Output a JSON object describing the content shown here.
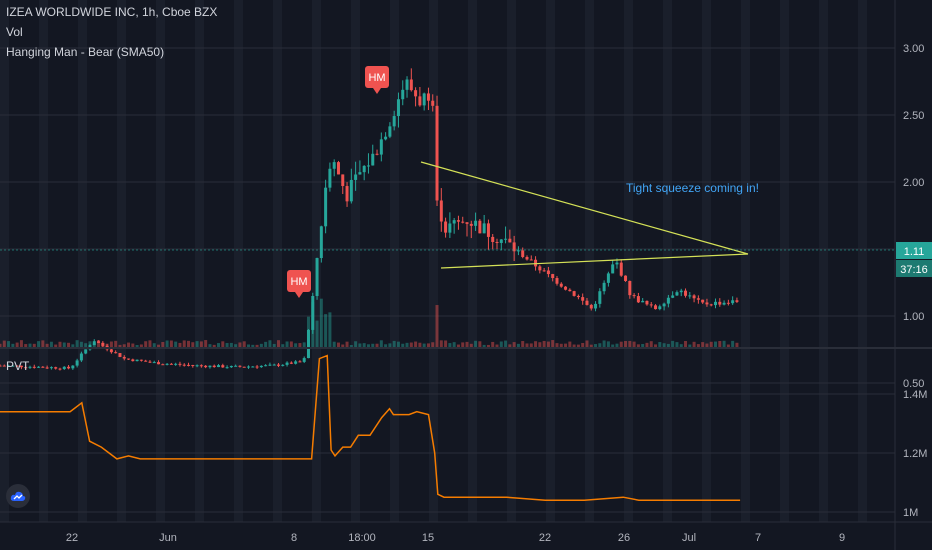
{
  "header": {
    "symbol_line": "IZEA WORLDWIDE INC, 1h, Cboe BZX",
    "vol_label": "Vol",
    "indicator_label": "Hanging Man - Bear (SMA50)",
    "pvt_label": "PVT"
  },
  "annotation": {
    "text": "Tight squeeze coming in!"
  },
  "price_badges": {
    "last_price": "1.11",
    "countdown": "37:16"
  },
  "markers": {
    "hm_label": "HM"
  },
  "colors": {
    "background": "#131722",
    "up_candle": "#26a69a",
    "down_candle": "#ef5350",
    "trendline": "#d4e157",
    "pvt_line": "#f57c00",
    "annotation_text": "#42a5f5",
    "axis_text": "#b2b5be",
    "hm_marker": "#ef5350"
  },
  "chart_data": [
    {
      "type": "candlestick",
      "title": "IZEA WORLDWIDE INC, 1h, Cboe BZX",
      "y_axis": {
        "ticks": [
          "3.00",
          "2.50",
          "2.00",
          "1.50",
          "1.00",
          "0.50"
        ],
        "range": [
          0.3,
          3.25
        ]
      },
      "x_axis": {
        "ticks": [
          "22",
          "Jun",
          "8",
          "18:00",
          "15",
          "22",
          "26",
          "Jul",
          "7",
          "9"
        ]
      },
      "series": [
        {
          "name": "price",
          "points": [
            {
              "x": 0.0,
              "y": 0.63
            },
            {
              "x": 0.5,
              "y": 0.62
            },
            {
              "x": 0.9,
              "y": 0.61
            },
            {
              "x": 1.2,
              "y": 0.82
            },
            {
              "x": 1.6,
              "y": 0.68
            },
            {
              "x": 2.0,
              "y": 0.65
            },
            {
              "x": 2.5,
              "y": 0.63
            },
            {
              "x": 3.0,
              "y": 0.62
            },
            {
              "x": 3.5,
              "y": 0.63
            },
            {
              "x": 3.9,
              "y": 0.66
            },
            {
              "x": 4.0,
              "y": 1.05
            },
            {
              "x": 4.1,
              "y": 1.6
            },
            {
              "x": 4.25,
              "y": 2.2
            },
            {
              "x": 4.45,
              "y": 1.9
            },
            {
              "x": 4.6,
              "y": 2.05
            },
            {
              "x": 4.8,
              "y": 2.2
            },
            {
              "x": 5.0,
              "y": 2.45
            },
            {
              "x": 5.2,
              "y": 2.75
            },
            {
              "x": 5.4,
              "y": 2.6
            },
            {
              "x": 5.55,
              "y": 2.7
            },
            {
              "x": 5.6,
              "y": 1.95
            },
            {
              "x": 5.7,
              "y": 1.65
            },
            {
              "x": 6.0,
              "y": 1.72
            },
            {
              "x": 6.5,
              "y": 1.55
            },
            {
              "x": 7.0,
              "y": 1.32
            },
            {
              "x": 7.4,
              "y": 1.15
            },
            {
              "x": 7.6,
              "y": 1.05
            },
            {
              "x": 7.9,
              "y": 1.42
            },
            {
              "x": 8.1,
              "y": 1.15
            },
            {
              "x": 8.4,
              "y": 1.05
            },
            {
              "x": 8.7,
              "y": 1.2
            },
            {
              "x": 9.0,
              "y": 1.09
            },
            {
              "x": 9.5,
              "y": 1.11
            }
          ]
        }
      ],
      "annotations": [
        "Tight squeeze coming in!"
      ],
      "markers": [
        "HM",
        "HM"
      ],
      "last_price": 1.11
    },
    {
      "type": "line",
      "title": "PVT",
      "y_axis": {
        "ticks": [
          "1.4M",
          "1.2M",
          "1M"
        ],
        "range": [
          0.99,
          1.55
        ]
      },
      "series": [
        {
          "name": "PVT",
          "x": [
            0.0,
            0.9,
            1.05,
            1.15,
            1.3,
            1.5,
            1.65,
            1.8,
            2.5,
            3.0,
            3.5,
            4.0,
            4.1,
            4.2,
            4.25,
            4.3,
            4.4,
            4.5,
            4.6,
            4.75,
            4.9,
            5.0,
            5.05,
            5.25,
            5.35,
            5.5,
            5.58,
            5.62,
            5.7,
            6.5,
            7.0,
            7.5,
            8.0,
            8.2,
            8.5,
            9.0,
            9.5
          ],
          "values": [
            1.34,
            1.34,
            1.37,
            1.24,
            1.22,
            1.18,
            1.19,
            1.18,
            1.18,
            1.18,
            1.18,
            1.18,
            1.52,
            1.53,
            1.21,
            1.19,
            1.22,
            1.22,
            1.26,
            1.26,
            1.32,
            1.35,
            1.33,
            1.33,
            1.34,
            1.33,
            1.2,
            1.06,
            1.05,
            1.05,
            1.04,
            1.04,
            1.05,
            1.04,
            1.04,
            1.04,
            1.04
          ]
        }
      ]
    }
  ]
}
